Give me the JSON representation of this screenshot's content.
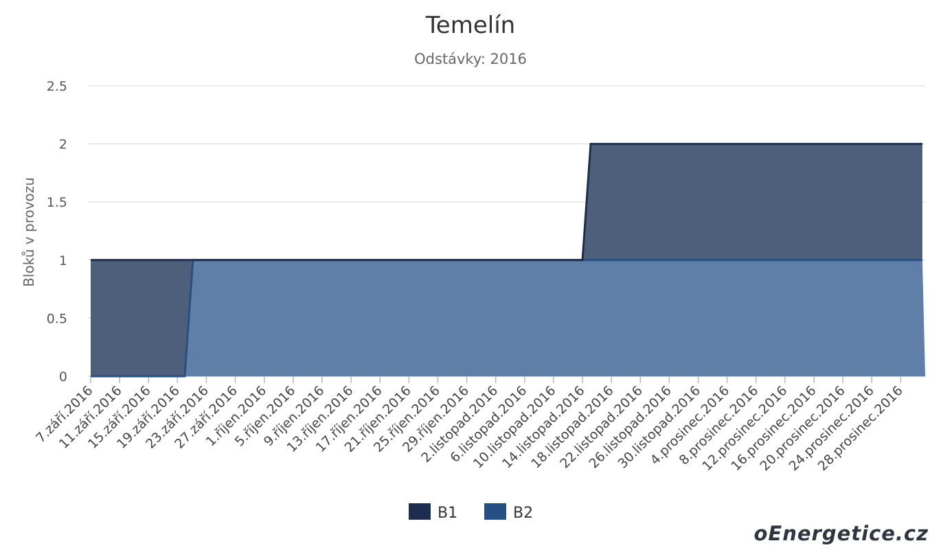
{
  "chart_data": {
    "type": "area",
    "title": "Temelín",
    "subtitle": "Odstávky: 2016",
    "ylabel": "Bloků v provozu",
    "ylim": [
      0,
      2.5
    ],
    "yticks": [
      0,
      0.5,
      1,
      1.5,
      2,
      2.5
    ],
    "ytick_labels": [
      "0",
      "0.5",
      "1",
      "1.5",
      "2",
      "2.5"
    ],
    "stacked": true,
    "grid": true,
    "legend_position": "bottom-center",
    "x_categories": [
      "7.září.2016",
      "11.září.2016",
      "15.září.2016",
      "19.září.2016",
      "23.září.2016",
      "27.září.2016",
      "1.říjen.2016",
      "5.říjen.2016",
      "9.říjen.2016",
      "13.říjen.2016",
      "17.říjen.2016",
      "21.říjen.2016",
      "25.říjen.2016",
      "29.říjen.2016",
      "2.listopad.2016",
      "6.listopad.2016",
      "10.listopad.2016",
      "14.listopad.2016",
      "18.listopad.2016",
      "22.listopad.2016",
      "26.listopad.2016",
      "30.listopad.2016",
      "4.prosinec.2016",
      "8.prosinec.2016",
      "12.prosinec.2016",
      "16.prosinec.2016",
      "20.prosinec.2016",
      "24.prosinec.2016",
      "28.prosinec.2016"
    ],
    "series": [
      {
        "name": "B1",
        "color": "#1b2e4f",
        "fill": "#4d5f7a",
        "points": [
          [
            "7.září.2016",
            0
          ],
          [
            "14.listopad.2016",
            0
          ],
          [
            "14.listopad.2016",
            1
          ],
          [
            "31.prosinec.2016",
            1
          ]
        ]
      },
      {
        "name": "B2",
        "color": "#264f86",
        "fill": "#607fa8",
        "points": [
          [
            "7.září.2016",
            0
          ],
          [
            "20.září.2016",
            0
          ],
          [
            "20.září.2016",
            1
          ],
          [
            "31.prosinec.2016",
            1
          ]
        ]
      }
    ]
  },
  "watermark": "oEnergetice.cz"
}
